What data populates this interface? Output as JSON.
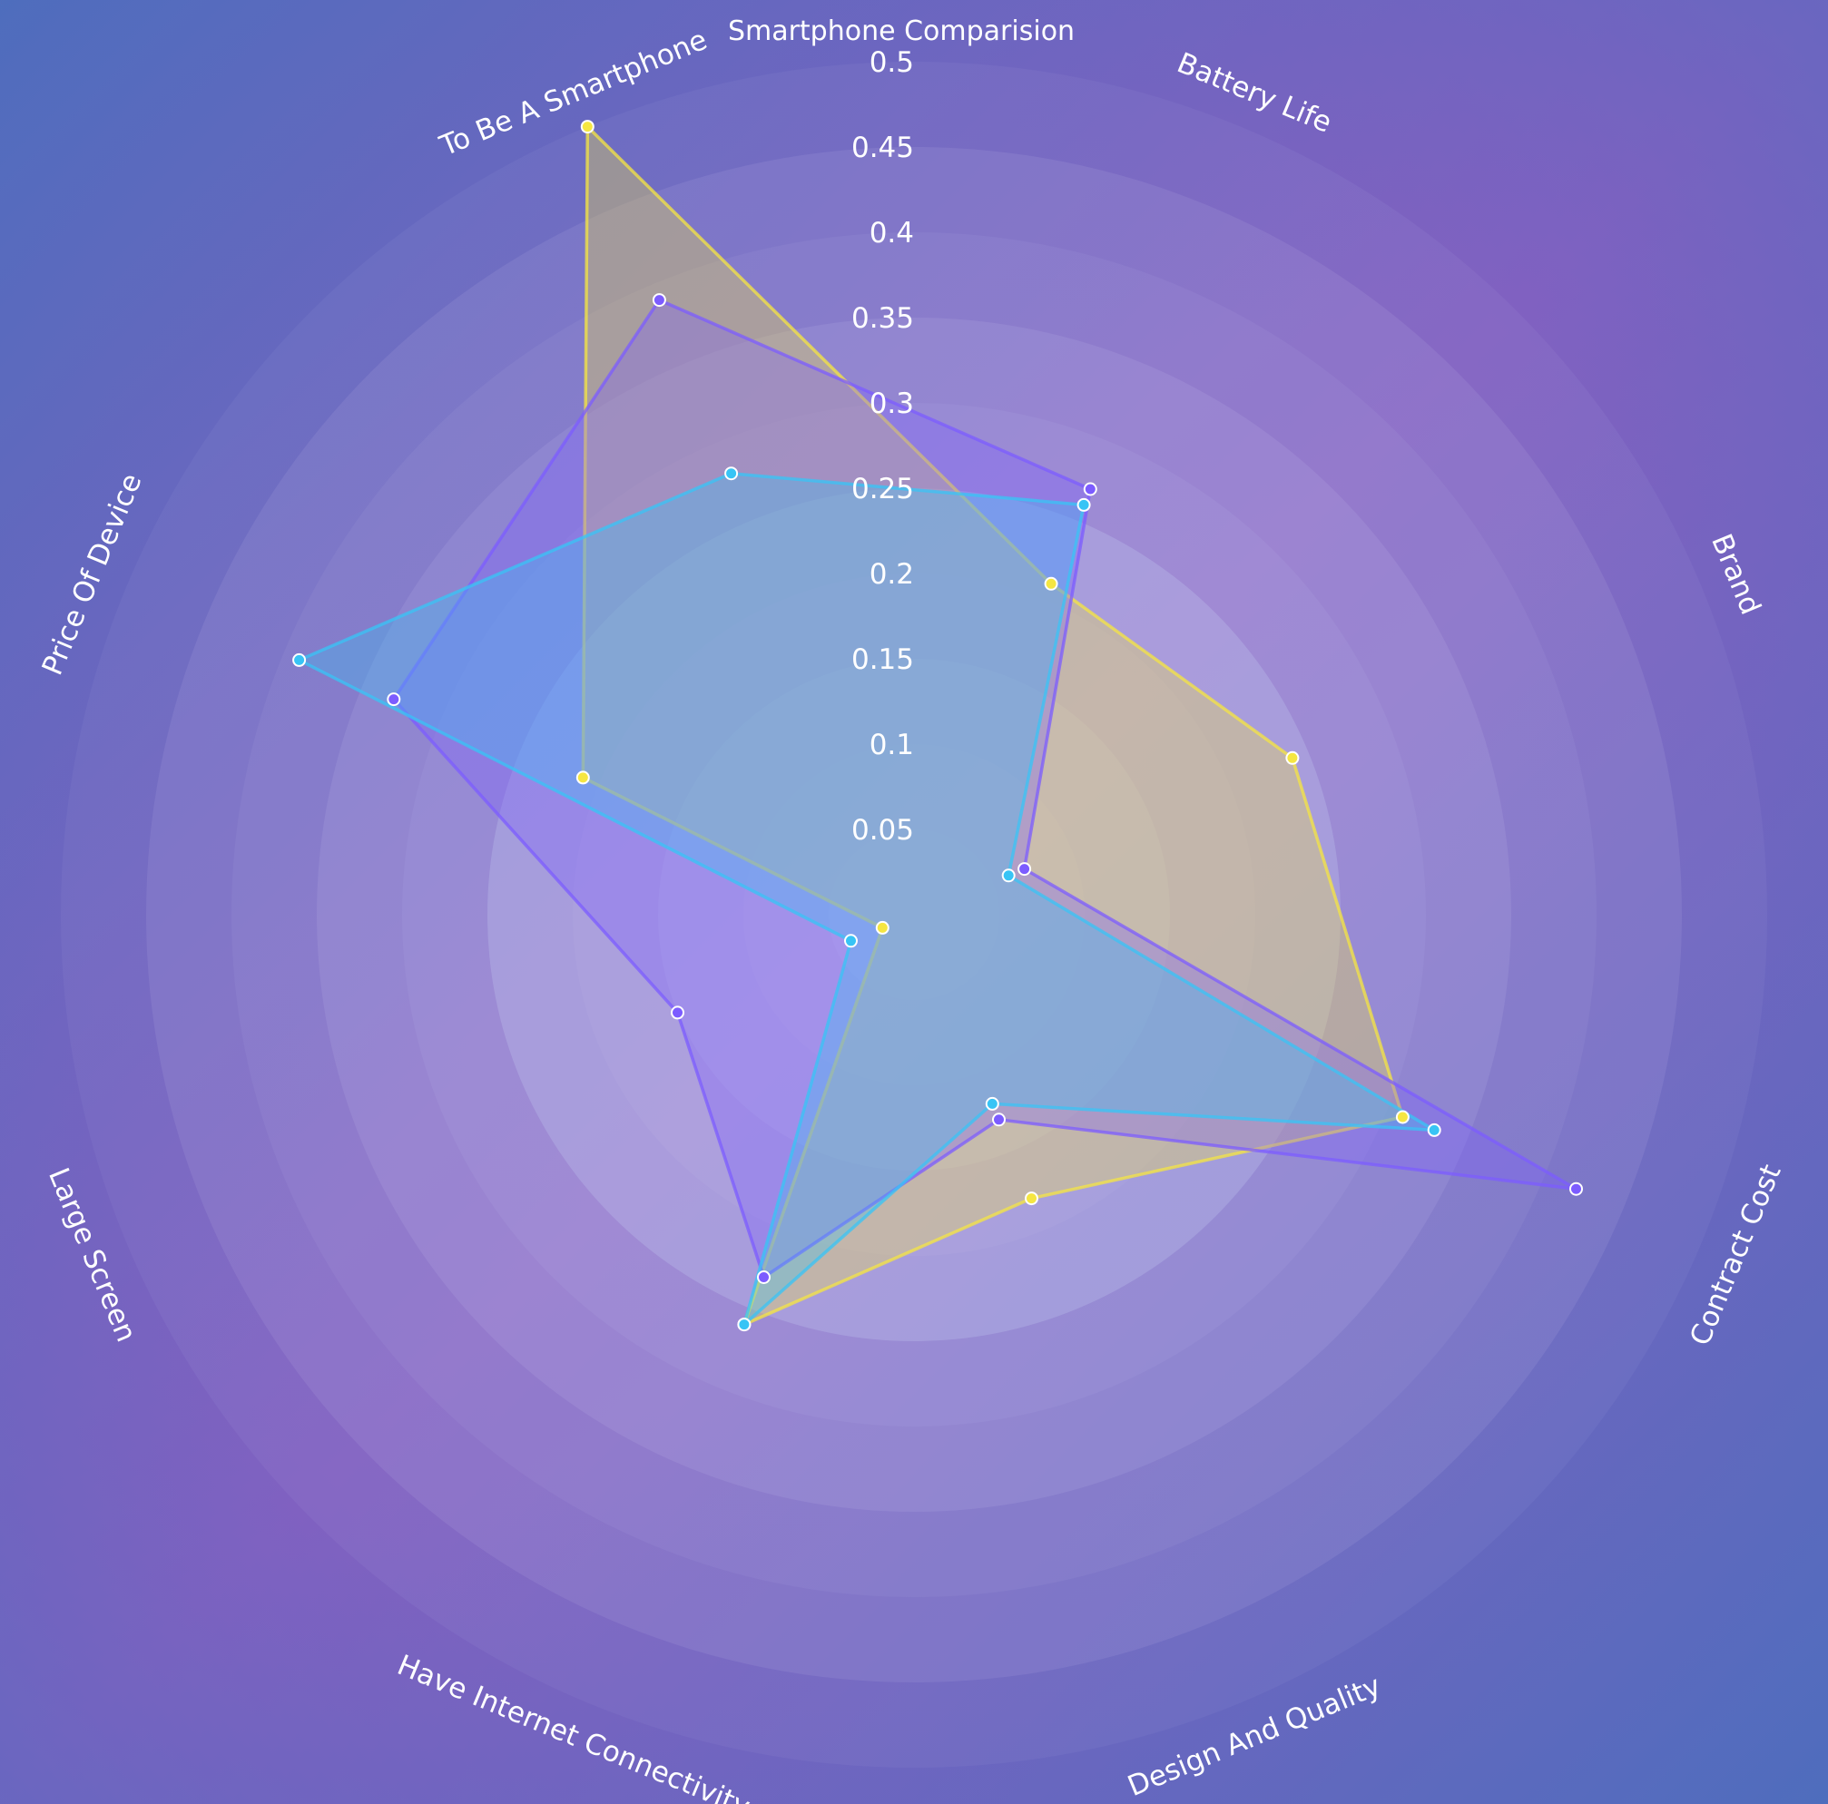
{
  "chart_data": {
    "type": "radar",
    "title": "Smartphone Comparision",
    "categories": [
      "Battery Life",
      "Brand",
      "Contract Cost",
      "Design And Quality",
      "Have Internet Connectivity",
      "Large Screen",
      "Price Of Device",
      "To Be A Smartphone"
    ],
    "radial_range": [
      0,
      0.5
    ],
    "radial_ticks": [
      "0.05",
      "0.1",
      "0.15",
      "0.2",
      "0.25",
      "0.3",
      "0.35",
      "0.4",
      "0.45",
      "0.5"
    ],
    "series": [
      {
        "color": "#f5e642",
        "values": [
          0.21,
          0.24,
          0.31,
          0.18,
          0.26,
          0.02,
          0.21,
          0.5
        ]
      },
      {
        "color": "#7c5cff",
        "values": [
          0.27,
          0.07,
          0.42,
          0.13,
          0.23,
          0.15,
          0.33,
          0.39
        ]
      },
      {
        "color": "#38c4f5",
        "values": [
          0.26,
          0.06,
          0.33,
          0.12,
          0.26,
          0.04,
          0.39,
          0.28
        ]
      }
    ],
    "background": {
      "outer": "#4a6bbd",
      "mid": "#7a5ec0",
      "inner": "#b9b8e8"
    },
    "grid": true,
    "legend": "none"
  }
}
